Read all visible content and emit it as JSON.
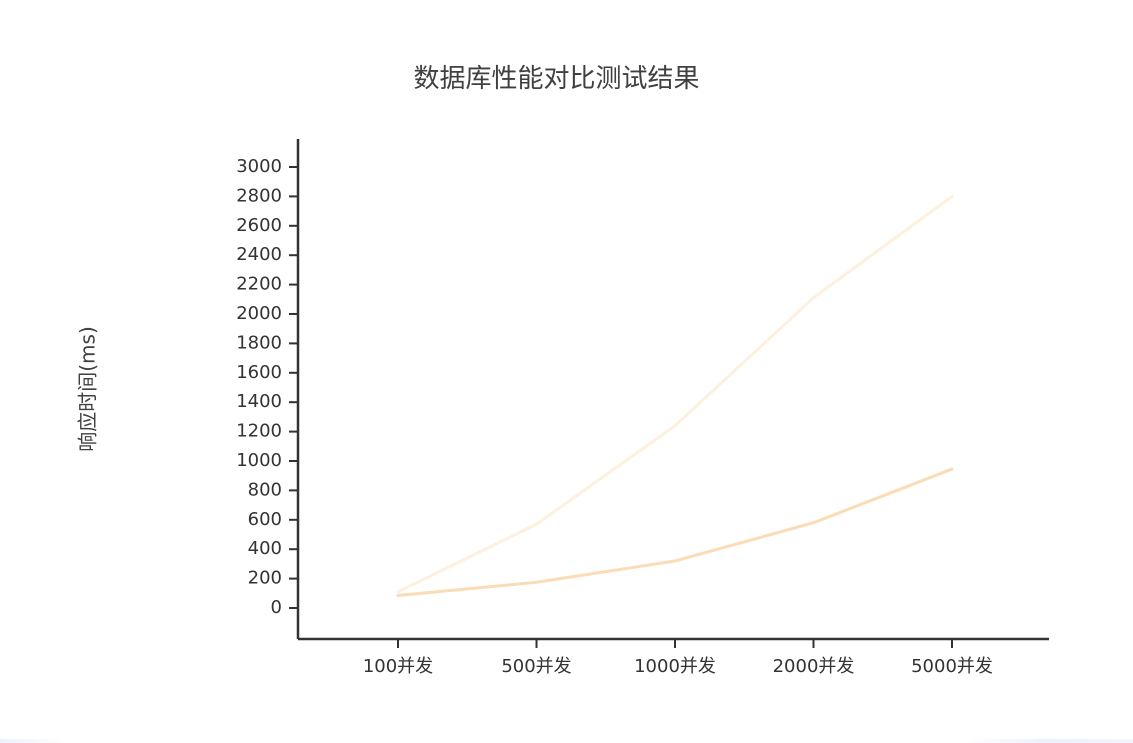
{
  "chart_data": {
    "type": "line",
    "title": "数据库性能对比测试结果",
    "xlabel": "",
    "ylabel": "响应时间(ms)",
    "categories": [
      "100并发",
      "500并发",
      "1000并发",
      "2000并发",
      "5000并发"
    ],
    "y_ticks": [
      "0",
      "200",
      "400",
      "600",
      "800",
      "1000",
      "1200",
      "1400",
      "1600",
      "1800",
      "2000",
      "2200",
      "2400",
      "2600",
      "2800",
      "3000"
    ],
    "ylim": [
      0,
      3000
    ],
    "grid": false,
    "legend": "none",
    "series": [
      {
        "color": "#fdf0dc",
        "values": [
          110,
          570,
          1240,
          2110,
          2800
        ]
      },
      {
        "color": "#fbdcb6",
        "values": [
          85,
          175,
          320,
          580,
          945
        ]
      }
    ]
  }
}
